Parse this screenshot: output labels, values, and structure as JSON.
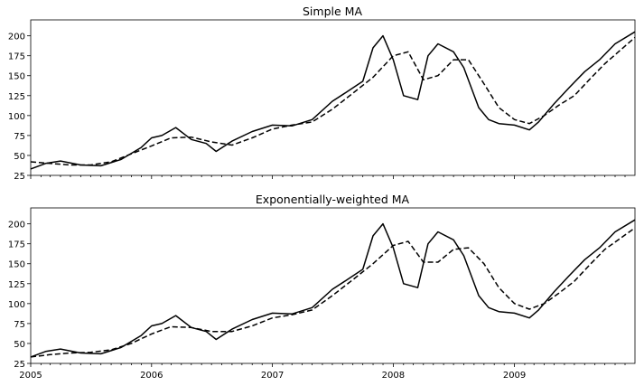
{
  "chart_data": [
    {
      "type": "line",
      "title": "Simple MA",
      "xlabel": "",
      "ylabel": "",
      "xlim": [
        "2005-01-01",
        "2009-12-31"
      ],
      "ylim": [
        25,
        220
      ],
      "yticks": [
        25,
        50,
        75,
        100,
        125,
        150,
        175,
        200
      ],
      "xtick_labels": [],
      "legend": "none",
      "grid": false,
      "series": [
        {
          "style": "solid",
          "color": "#000000",
          "x": [
            "2005-01-01",
            "2005-02-15",
            "2005-04-01",
            "2005-06-01",
            "2005-08-01",
            "2005-10-01",
            "2005-12-01",
            "2006-01-01",
            "2006-02-01",
            "2006-03-15",
            "2006-05-01",
            "2006-06-15",
            "2006-07-15",
            "2006-09-01",
            "2006-11-01",
            "2007-01-01",
            "2007-03-01",
            "2007-05-01",
            "2007-07-01",
            "2007-08-15",
            "2007-10-01",
            "2007-11-01",
            "2007-12-01",
            "2008-01-01",
            "2008-02-01",
            "2008-03-15",
            "2008-04-15",
            "2008-05-15",
            "2008-07-01",
            "2008-08-01",
            "2008-09-15",
            "2008-10-15",
            "2008-11-15",
            "2009-01-01",
            "2009-02-15",
            "2009-03-15",
            "2009-05-01",
            "2009-06-15",
            "2009-08-01",
            "2009-09-15",
            "2009-11-01",
            "2009-12-31"
          ],
          "values": [
            33,
            40,
            43,
            38,
            37,
            45,
            60,
            72,
            75,
            85,
            70,
            65,
            55,
            68,
            80,
            88,
            87,
            95,
            118,
            130,
            143,
            185,
            200,
            170,
            125,
            120,
            175,
            190,
            180,
            160,
            110,
            95,
            90,
            88,
            82,
            92,
            115,
            135,
            155,
            170,
            190,
            205
          ]
        },
        {
          "style": "dashed",
          "color": "#000000",
          "x": [
            "2005-01-01",
            "2005-03-01",
            "2005-05-01",
            "2005-07-01",
            "2005-09-01",
            "2005-11-01",
            "2006-01-01",
            "2006-03-01",
            "2006-05-01",
            "2006-07-01",
            "2006-09-01",
            "2006-11-01",
            "2007-01-01",
            "2007-03-01",
            "2007-05-01",
            "2007-07-01",
            "2007-09-01",
            "2007-11-01",
            "2008-01-01",
            "2008-02-15",
            "2008-04-01",
            "2008-05-15",
            "2008-07-01",
            "2008-08-15",
            "2008-10-01",
            "2008-11-15",
            "2009-01-01",
            "2009-02-15",
            "2009-04-01",
            "2009-05-15",
            "2009-07-01",
            "2009-08-15",
            "2009-10-01",
            "2009-12-31"
          ],
          "values": [
            42,
            40,
            38,
            38,
            42,
            52,
            62,
            72,
            73,
            67,
            63,
            72,
            83,
            88,
            92,
            108,
            128,
            148,
            175,
            180,
            145,
            150,
            170,
            170,
            140,
            110,
            95,
            90,
            100,
            113,
            125,
            145,
            165,
            198
          ]
        }
      ]
    },
    {
      "type": "line",
      "title": "Exponentially-weighted MA",
      "xlabel": "",
      "ylabel": "",
      "xlim": [
        "2005-01-01",
        "2009-12-31"
      ],
      "ylim": [
        25,
        220
      ],
      "yticks": [
        25,
        50,
        75,
        100,
        125,
        150,
        175,
        200
      ],
      "xtick_labels": [
        "2005",
        "2006",
        "2007",
        "2008",
        "2009"
      ],
      "legend": "none",
      "grid": false,
      "series": [
        {
          "style": "solid",
          "color": "#000000",
          "x": [
            "2005-01-01",
            "2005-02-15",
            "2005-04-01",
            "2005-06-01",
            "2005-08-01",
            "2005-10-01",
            "2005-12-01",
            "2006-01-01",
            "2006-02-01",
            "2006-03-15",
            "2006-05-01",
            "2006-06-15",
            "2006-07-15",
            "2006-09-01",
            "2006-11-01",
            "2007-01-01",
            "2007-03-01",
            "2007-05-01",
            "2007-07-01",
            "2007-08-15",
            "2007-10-01",
            "2007-11-01",
            "2007-12-01",
            "2008-01-01",
            "2008-02-01",
            "2008-03-15",
            "2008-04-15",
            "2008-05-15",
            "2008-07-01",
            "2008-08-01",
            "2008-09-15",
            "2008-10-15",
            "2008-11-15",
            "2009-01-01",
            "2009-02-15",
            "2009-03-15",
            "2009-05-01",
            "2009-06-15",
            "2009-08-01",
            "2009-09-15",
            "2009-11-01",
            "2009-12-31"
          ],
          "values": [
            33,
            40,
            43,
            38,
            37,
            45,
            60,
            72,
            75,
            85,
            70,
            65,
            55,
            68,
            80,
            88,
            87,
            95,
            118,
            130,
            143,
            185,
            200,
            170,
            125,
            120,
            175,
            190,
            180,
            160,
            110,
            95,
            90,
            88,
            82,
            92,
            115,
            135,
            155,
            170,
            190,
            205
          ]
        },
        {
          "style": "dashed",
          "color": "#000000",
          "x": [
            "2005-01-01",
            "2005-03-01",
            "2005-05-01",
            "2005-07-01",
            "2005-09-01",
            "2005-11-01",
            "2006-01-01",
            "2006-03-01",
            "2006-05-01",
            "2006-07-01",
            "2006-09-01",
            "2006-11-01",
            "2007-01-01",
            "2007-03-01",
            "2007-05-01",
            "2007-07-01",
            "2007-09-01",
            "2007-11-01",
            "2008-01-01",
            "2008-02-15",
            "2008-04-01",
            "2008-05-15",
            "2008-07-01",
            "2008-08-15",
            "2008-10-01",
            "2008-11-15",
            "2009-01-01",
            "2009-02-15",
            "2009-04-01",
            "2009-05-15",
            "2009-07-01",
            "2009-08-15",
            "2009-10-01",
            "2009-12-31"
          ],
          "values": [
            33,
            36,
            38,
            39,
            42,
            50,
            62,
            71,
            70,
            65,
            65,
            72,
            82,
            86,
            92,
            110,
            130,
            150,
            173,
            178,
            152,
            152,
            168,
            170,
            150,
            120,
            100,
            93,
            100,
            113,
            128,
            148,
            168,
            195
          ]
        }
      ]
    }
  ]
}
